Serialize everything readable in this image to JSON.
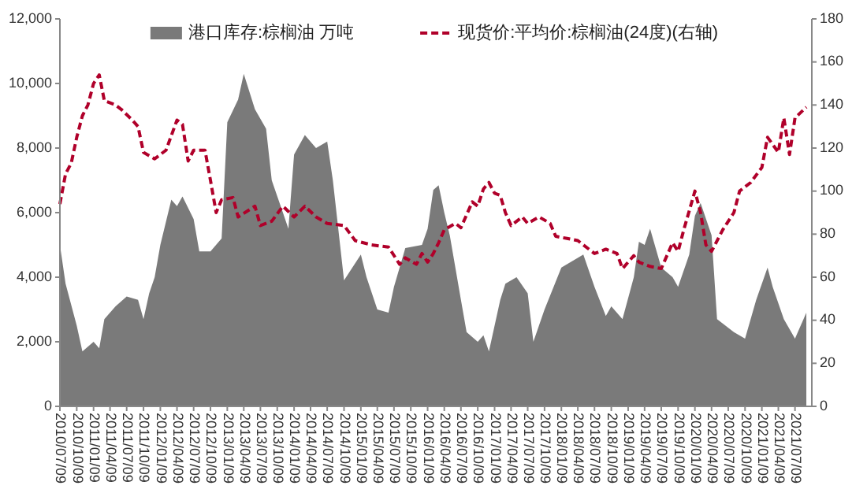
{
  "chart_data": {
    "type": "area",
    "xlim": [
      "2010-07-09",
      "2021-10-09"
    ],
    "xticks": [
      {
        "value": "2010-07-09",
        "label": "2010/07/09"
      },
      {
        "value": "2010-10-09",
        "label": "2010/10/09"
      },
      {
        "value": "2011-01-09",
        "label": "2011/01/09"
      },
      {
        "value": "2011-04-09",
        "label": "2011/04/09"
      },
      {
        "value": "2011-07-09",
        "label": "2011/07/09"
      },
      {
        "value": "2011-10-09",
        "label": "2011/10/09"
      },
      {
        "value": "2012-01-09",
        "label": "2012/01/09"
      },
      {
        "value": "2012-04-09",
        "label": "2012/04/09"
      },
      {
        "value": "2012-07-09",
        "label": "2012/07/09"
      },
      {
        "value": "2012-10-09",
        "label": "2012/10/09"
      },
      {
        "value": "2013-01-09",
        "label": "2013/01/09"
      },
      {
        "value": "2013-04-09",
        "label": "2013/04/09"
      },
      {
        "value": "2013-07-09",
        "label": "2013/07/09"
      },
      {
        "value": "2013-10-09",
        "label": "2013/10/09"
      },
      {
        "value": "2014-01-09",
        "label": "2014/01/09"
      },
      {
        "value": "2014-04-09",
        "label": "2014/04/09"
      },
      {
        "value": "2014-07-09",
        "label": "2014/07/09"
      },
      {
        "value": "2014-10-09",
        "label": "2014/10/09"
      },
      {
        "value": "2015-01-09",
        "label": "2015/01/09"
      },
      {
        "value": "2015-04-09",
        "label": "2015/04/09"
      },
      {
        "value": "2015-07-09",
        "label": "2015/07/09"
      },
      {
        "value": "2015-10-09",
        "label": "2015/10/09"
      },
      {
        "value": "2016-01-09",
        "label": "2016/01/09"
      },
      {
        "value": "2016-04-09",
        "label": "2016/04/09"
      },
      {
        "value": "2016-07-09",
        "label": "2016/07/09"
      },
      {
        "value": "2016-10-09",
        "label": "2016/10/09"
      },
      {
        "value": "2017-01-09",
        "label": "2017/01/09"
      },
      {
        "value": "2017-04-09",
        "label": "2017/04/09"
      },
      {
        "value": "2017-07-09",
        "label": "2017/07/09"
      },
      {
        "value": "2017-10-09",
        "label": "2017/10/09"
      },
      {
        "value": "2018-01-09",
        "label": "2018/01/09"
      },
      {
        "value": "2018-04-09",
        "label": "2018/04/09"
      },
      {
        "value": "2018-07-09",
        "label": "2018/07/09"
      },
      {
        "value": "2018-10-09",
        "label": "2018/10/09"
      },
      {
        "value": "2019-01-09",
        "label": "2019/01/09"
      },
      {
        "value": "2019-04-09",
        "label": "2019/04/09"
      },
      {
        "value": "2019-07-09",
        "label": "2019/07/09"
      },
      {
        "value": "2019-10-09",
        "label": "2019/10/09"
      },
      {
        "value": "2020-01-09",
        "label": "2020/01/09"
      },
      {
        "value": "2020-04-09",
        "label": "2020/04/09"
      },
      {
        "value": "2020-07-09",
        "label": "2020/07/09"
      },
      {
        "value": "2020-10-09",
        "label": "2020/10/09"
      },
      {
        "value": "2021-01-09",
        "label": "2021/01/09"
      },
      {
        "value": "2021-04-09",
        "label": "2021/04/09"
      },
      {
        "value": "2021-07-09",
        "label": "2021/07/09"
      }
    ],
    "ylim": [
      0,
      12000
    ],
    "yticks": [
      0,
      {
        "value": 2000,
        "label": "2,000"
      },
      {
        "value": 4000,
        "label": "4,000"
      },
      {
        "value": 6000,
        "label": "6,000"
      },
      {
        "value": 8000,
        "label": "8,000"
      },
      {
        "value": 10000,
        "label": "10,000"
      },
      {
        "value": 12000,
        "label": "12,000"
      }
    ],
    "y2lim": [
      0,
      180
    ],
    "y2ticks": [
      0,
      20,
      40,
      60,
      80,
      100,
      120,
      140,
      160,
      180
    ],
    "legend": "top",
    "series": [
      {
        "name": "港口库存:棕榈油 万吨",
        "color": "#7a7a7a",
        "x": [
          "2010-07-09",
          "2010-08-09",
          "2010-10-09",
          "2010-11-09",
          "2011-01-09",
          "2011-02-09",
          "2011-03-09",
          "2011-05-09",
          "2011-07-09",
          "2011-09-09",
          "2011-10-09",
          "2011-11-09",
          "2011-12-09",
          "2012-01-09",
          "2012-03-09",
          "2012-04-09",
          "2012-05-09",
          "2012-07-09",
          "2012-08-09",
          "2012-10-09",
          "2012-12-09",
          "2013-01-09",
          "2013-03-09",
          "2013-04-09",
          "2013-06-09",
          "2013-08-09",
          "2013-09-09",
          "2013-11-09",
          "2013-12-09",
          "2014-01-09",
          "2014-03-09",
          "2014-05-09",
          "2014-07-09",
          "2014-08-09",
          "2014-10-09",
          "2015-01-09",
          "2015-02-09",
          "2015-04-09",
          "2015-06-09",
          "2015-07-09",
          "2015-09-09",
          "2015-12-09",
          "2016-01-09",
          "2016-02-09",
          "2016-03-09",
          "2016-04-09",
          "2016-05-09",
          "2016-07-09",
          "2016-08-09",
          "2016-10-09",
          "2016-11-09",
          "2016-12-09",
          "2017-02-09",
          "2017-03-09",
          "2017-05-09",
          "2017-07-09",
          "2017-08-09",
          "2017-10-09",
          "2018-01-09",
          "2018-05-09",
          "2018-07-09",
          "2018-09-09",
          "2018-10-09",
          "2018-12-09",
          "2019-02-09",
          "2019-03-09",
          "2019-04-09",
          "2019-05-09",
          "2019-07-09",
          "2019-09-09",
          "2019-10-09",
          "2019-12-09",
          "2020-01-09",
          "2020-02-09",
          "2020-04-09",
          "2020-05-09",
          "2020-08-09",
          "2020-10-09",
          "2020-12-09",
          "2021-02-09",
          "2021-03-09",
          "2021-05-09",
          "2021-07-09",
          "2021-09-09"
        ],
        "values": [
          5000,
          3800,
          2500,
          1700,
          2000,
          1800,
          2700,
          3100,
          3400,
          3300,
          2700,
          3500,
          4000,
          5000,
          6400,
          6200,
          6500,
          5800,
          4800,
          4800,
          5200,
          8800,
          9500,
          10300,
          9200,
          8600,
          7000,
          6000,
          5500,
          7800,
          8400,
          8000,
          8200,
          7000,
          3900,
          4700,
          4000,
          3000,
          2900,
          3700,
          4900,
          5000,
          5500,
          6700,
          6850,
          6000,
          5300,
          3300,
          2300,
          2000,
          2200,
          1700,
          3300,
          3800,
          4000,
          3500,
          2000,
          3000,
          4300,
          4700,
          3700,
          2800,
          3100,
          2700,
          4000,
          5100,
          5000,
          5500,
          4300,
          4000,
          3700,
          4700,
          5900,
          6300,
          5300,
          2700,
          2300,
          2100,
          3300,
          4300,
          3700,
          2700,
          2100,
          2900
        ]
      },
      {
        "name": "现货价:平均价:棕榈油(24度)(右轴)",
        "type": "line",
        "axis": "y2",
        "color": "#b0002a",
        "line_style": "dashed",
        "x": [
          "2010-07-09",
          "2010-08-09",
          "2010-09-09",
          "2010-10-09",
          "2010-11-09",
          "2010-12-09",
          "2011-01-09",
          "2011-02-09",
          "2011-03-09",
          "2011-05-09",
          "2011-06-09",
          "2011-08-09",
          "2011-09-09",
          "2011-10-09",
          "2011-12-09",
          "2012-02-09",
          "2012-04-09",
          "2012-05-09",
          "2012-06-09",
          "2012-07-09",
          "2012-09-09",
          "2012-10-09",
          "2012-11-09",
          "2012-12-09",
          "2013-02-09",
          "2013-03-09",
          "2013-06-09",
          "2013-07-09",
          "2013-09-09",
          "2013-11-09",
          "2014-01-09",
          "2014-03-09",
          "2014-05-09",
          "2014-07-09",
          "2014-10-09",
          "2014-12-09",
          "2015-03-09",
          "2015-06-09",
          "2015-08-09",
          "2015-09-09",
          "2015-11-09",
          "2015-12-09",
          "2016-01-09",
          "2016-02-09",
          "2016-03-09",
          "2016-04-09",
          "2016-06-09",
          "2016-07-09",
          "2016-09-09",
          "2016-10-09",
          "2016-11-09",
          "2016-12-09",
          "2017-01-09",
          "2017-02-09",
          "2017-03-09",
          "2017-04-09",
          "2017-06-09",
          "2017-07-09",
          "2017-09-09",
          "2017-11-09",
          "2017-12-09",
          "2018-02-09",
          "2018-04-09",
          "2018-06-09",
          "2018-07-09",
          "2018-09-09",
          "2018-11-09",
          "2018-12-09",
          "2019-02-09",
          "2019-03-09",
          "2019-05-09",
          "2019-07-09",
          "2019-09-09",
          "2019-10-09",
          "2019-11-09",
          "2020-01-09",
          "2020-02-09",
          "2020-03-09",
          "2020-04-09",
          "2020-06-09",
          "2020-08-09",
          "2020-09-09",
          "2020-11-09",
          "2021-01-09",
          "2021-02-09",
          "2021-04-09",
          "2021-05-09",
          "2021-06-09",
          "2021-07-09",
          "2021-09-09"
        ],
        "values": [
          94,
          108,
          113,
          125,
          135,
          140,
          150,
          154,
          142,
          140,
          138,
          133,
          130,
          118,
          115,
          119,
          133,
          131,
          114,
          119,
          119,
          105,
          90,
          96,
          97,
          88,
          93,
          84,
          86,
          93,
          88,
          93,
          88,
          85,
          84,
          77,
          75,
          74,
          66,
          69,
          66,
          71,
          67,
          71,
          76,
          82,
          85,
          83,
          95,
          93,
          101,
          104,
          99,
          98,
          90,
          84,
          88,
          85,
          88,
          85,
          79,
          78,
          77,
          73,
          71,
          73,
          71,
          64,
          70,
          67,
          65,
          64,
          76,
          72,
          82,
          100,
          90,
          75,
          72,
          82,
          90,
          100,
          104,
          111,
          125,
          118,
          134,
          117,
          134,
          139
        ]
      }
    ]
  }
}
